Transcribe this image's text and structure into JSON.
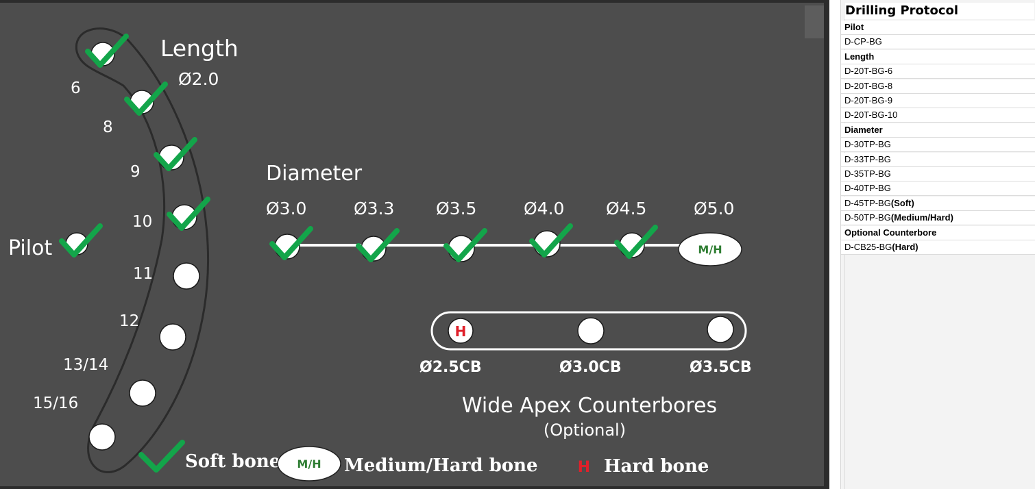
{
  "diagram": {
    "length_heading": "Length",
    "length_diameter": "Ø2.0",
    "pilot_label": "Pilot",
    "length_labels": [
      "6",
      "8",
      "9",
      "10",
      "11",
      "12",
      "13/14",
      "15/16"
    ],
    "diameter_heading": "Diameter",
    "diameter_labels": [
      "Ø3.0",
      "Ø3.3",
      "Ø3.5",
      "Ø4.0",
      "Ø4.5",
      "Ø5.0"
    ],
    "mh_badge": "M/H",
    "h_badge": "H",
    "counterbore_labels": [
      "Ø2.5CB",
      "Ø3.0CB",
      "Ø3.5CB"
    ],
    "counterbore_title": "Wide Apex Counterbores",
    "counterbore_subtitle": "(Optional)",
    "legend": {
      "soft": "Soft bone",
      "mh_badge": "M/H",
      "medium_hard": "Medium/Hard bone",
      "h_badge": "H",
      "hard": "Hard bone"
    },
    "colors": {
      "tray": "#4d4d4d",
      "check": "#13a54a",
      "mh_text": "#2e7d32",
      "h_text": "#e0202a"
    }
  },
  "sheet": {
    "title": "Drilling Protocol",
    "rows": [
      {
        "text": "Pilot",
        "header": true
      },
      {
        "text": "D-CP-BG"
      },
      {
        "text": "Length",
        "header": true
      },
      {
        "text": "D-20T-BG-6"
      },
      {
        "text": "D-20T-BG-8"
      },
      {
        "text": "D-20T-BG-9"
      },
      {
        "text": "D-20T-BG-10"
      },
      {
        "text": "Diameter",
        "header": true
      },
      {
        "text": "D-30TP-BG"
      },
      {
        "text": "D-33TP-BG"
      },
      {
        "text": "D-35TP-BG"
      },
      {
        "text": "D-40TP-BG"
      },
      {
        "text": "D-45TP-BG",
        "bold": "(Soft)"
      },
      {
        "text": "D-50TP-BG",
        "bold": "(Medium/Hard)"
      },
      {
        "text": "Optional Counterbore",
        "header": true
      },
      {
        "text": "D-CB25-BG",
        "bold": "(Hard)"
      }
    ]
  }
}
